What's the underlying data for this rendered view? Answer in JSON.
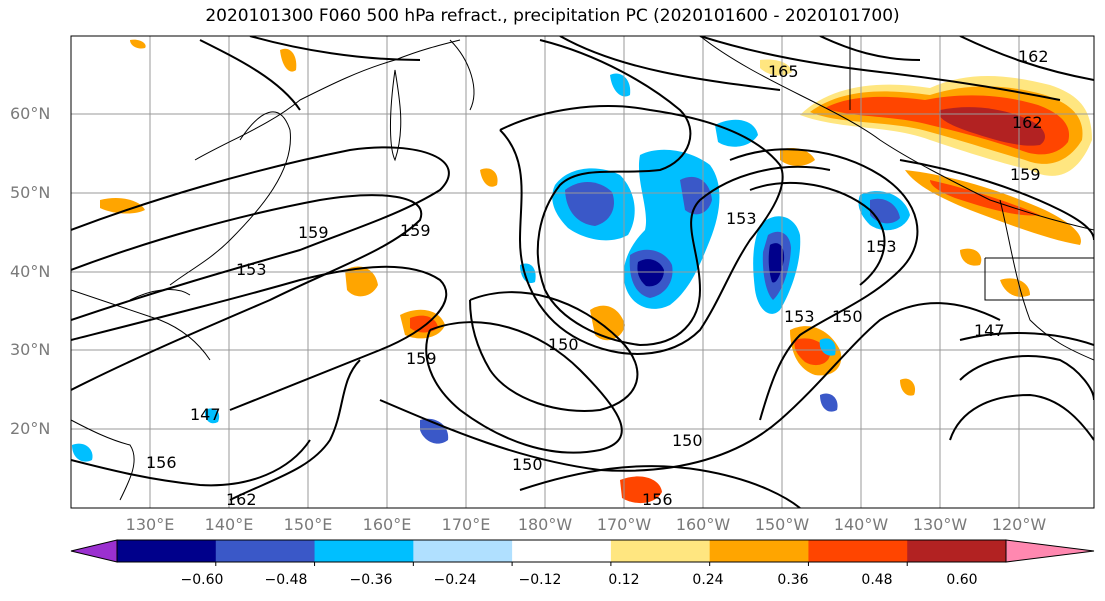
{
  "title": "2020101300 F060 500 hPa refract., precipitation PC (2020101600 - 2020101700)",
  "lat_labels": [
    "60°N",
    "50°N",
    "40°N",
    "30°N",
    "20°N"
  ],
  "lon_labels": [
    "130°E",
    "140°E",
    "150°E",
    "160°E",
    "170°E",
    "180°W",
    "170°W",
    "160°W",
    "150°W",
    "140°W",
    "130°W",
    "120°W"
  ],
  "contour_labels": [
    "165",
    "162",
    "162",
    "159",
    "159",
    "159",
    "153",
    "153",
    "153",
    "153",
    "150",
    "150",
    "150",
    "150",
    "147",
    "147",
    "156",
    "156",
    "162",
    "159"
  ],
  "colorbar": {
    "tick_labels": [
      "−0.60",
      "−0.48",
      "−0.36",
      "−0.24",
      "−0.12",
      "0.12",
      "0.24",
      "0.36",
      "0.48",
      "0.60"
    ],
    "colors": [
      "#9b30d0",
      "#00008b",
      "#3a58c8",
      "#00bfff",
      "#b0e0ff",
      "#ffffff",
      "#ffe680",
      "#ffa500",
      "#ff4500",
      "#b22222",
      "#ff88b0"
    ]
  }
}
